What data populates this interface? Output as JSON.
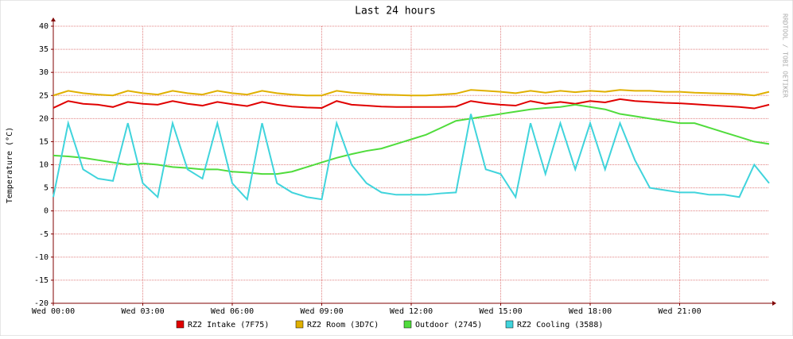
{
  "chart_data": {
    "type": "line",
    "title": "Last 24 hours",
    "y_label": "Temperature (°C)",
    "watermark": "RRDTOOL / TOBI OETIKER",
    "xlim": [
      0,
      24
    ],
    "xticks": [
      {
        "value": 0,
        "label": "Wed 00:00"
      },
      {
        "value": 3,
        "label": "Wed 03:00"
      },
      {
        "value": 6,
        "label": "Wed 06:00"
      },
      {
        "value": 9,
        "label": "Wed 09:00"
      },
      {
        "value": 12,
        "label": "Wed 12:00"
      },
      {
        "value": 15,
        "label": "Wed 15:00"
      },
      {
        "value": 18,
        "label": "Wed 18:00"
      },
      {
        "value": 21,
        "label": "Wed 21:00"
      }
    ],
    "ylim": [
      -20,
      40
    ],
    "yticks": [
      -20,
      -15,
      -10,
      -5,
      0,
      5,
      10,
      15,
      20,
      25,
      30,
      35,
      40
    ],
    "grid": true,
    "x": [
      0,
      0.5,
      1,
      1.5,
      2,
      2.5,
      3,
      3.5,
      4,
      4.5,
      5,
      5.5,
      6,
      6.5,
      7,
      7.5,
      8,
      8.5,
      9,
      9.5,
      10,
      10.5,
      11,
      11.5,
      12,
      12.5,
      13,
      13.5,
      14,
      14.5,
      15,
      15.5,
      16,
      16.5,
      17,
      17.5,
      18,
      18.5,
      19,
      19.5,
      20,
      20.5,
      21,
      21.5,
      22,
      22.5,
      23,
      23.5,
      24
    ],
    "series": [
      {
        "name": "RZ2 Intake (7F75)",
        "color": "#e00000",
        "values": [
          22.3,
          23.8,
          23.2,
          23,
          22.5,
          23.6,
          23.2,
          23,
          23.8,
          23.2,
          22.8,
          23.6,
          23.1,
          22.7,
          23.6,
          23,
          22.6,
          22.4,
          22.3,
          23.8,
          23,
          22.8,
          22.6,
          22.5,
          22.5,
          22.5,
          22.5,
          22.6,
          23.8,
          23.3,
          23,
          22.8,
          23.8,
          23.2,
          23.6,
          23.2,
          23.8,
          23.5,
          24.2,
          23.8,
          23.6,
          23.4,
          23.3,
          23.1,
          22.9,
          22.7,
          22.5,
          22.2,
          23
        ]
      },
      {
        "name": "RZ2 Room (3D7C)",
        "color": "#e0b000",
        "values": [
          25,
          26,
          25.5,
          25.2,
          25,
          26,
          25.5,
          25.2,
          26,
          25.5,
          25.2,
          26,
          25.5,
          25.2,
          26,
          25.5,
          25.2,
          25,
          25,
          26,
          25.6,
          25.4,
          25.2,
          25.1,
          25,
          25,
          25.2,
          25.4,
          26.2,
          26,
          25.8,
          25.5,
          26,
          25.6,
          26,
          25.7,
          26,
          25.8,
          26.2,
          26,
          26,
          25.8,
          25.8,
          25.6,
          25.5,
          25.4,
          25.3,
          25,
          25.8
        ]
      },
      {
        "name": "Outdoor (2745)",
        "color": "#50dc3c",
        "values": [
          12,
          11.8,
          11.5,
          11,
          10.5,
          10,
          10.3,
          10,
          9.5,
          9.3,
          9,
          9,
          8.5,
          8.3,
          8,
          8,
          8.5,
          9.5,
          10.5,
          11.5,
          12.3,
          13,
          13.5,
          14.5,
          15.5,
          16.5,
          18,
          19.5,
          20,
          20.5,
          21,
          21.5,
          22,
          22.3,
          22.5,
          23,
          22.5,
          22,
          21,
          20.5,
          20,
          19.5,
          19,
          19,
          18,
          17,
          16,
          15,
          14.5
        ]
      },
      {
        "name": "RZ2 Cooling (3588)",
        "color": "#40d4dc",
        "values": [
          3,
          19,
          9,
          7,
          6.5,
          19,
          6,
          3,
          19,
          9,
          7,
          19,
          6,
          2.5,
          19,
          6,
          4,
          3,
          2.5,
          19,
          10,
          6,
          4,
          3.5,
          3.5,
          3.5,
          3.8,
          4,
          21,
          9,
          8,
          3,
          19,
          8,
          19,
          9,
          19,
          9,
          19,
          11,
          5,
          4.5,
          4,
          4,
          3.5,
          3.5,
          3,
          10,
          6
        ]
      }
    ]
  }
}
